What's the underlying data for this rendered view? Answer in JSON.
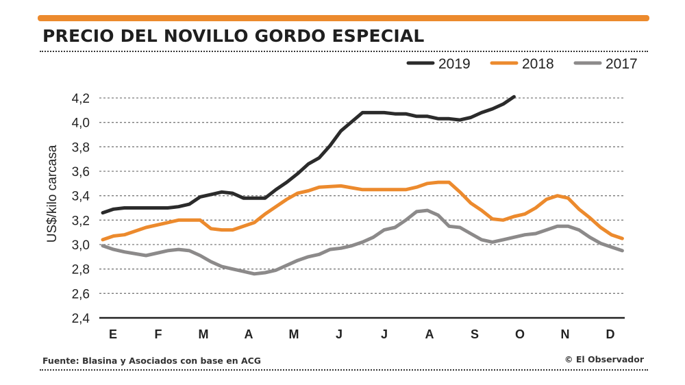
{
  "header": {
    "title": "PRECIO DEL NOVILLO GORDO ESPECIAL"
  },
  "footer": {
    "source": "Fuente: Blasina y Asociados con base en ACG",
    "credit": "© El Observador"
  },
  "colors": {
    "accent": "#ec8a2d",
    "s2019": "#2b2b2b",
    "s2018": "#ec8a2d",
    "s2017": "#8c8a8a",
    "grid": "#777777"
  },
  "chart_data": {
    "type": "line",
    "title": "PRECIO DEL NOVILLO GORDO ESPECIAL",
    "xlabel": "",
    "ylabel": "US$/kilo carcasa",
    "ylim": [
      2.4,
      4.2
    ],
    "yticks": [
      2.4,
      2.6,
      2.8,
      3.0,
      3.2,
      3.4,
      3.6,
      3.8,
      4.0,
      4.2
    ],
    "ytick_labels": [
      "2,4",
      "2,6",
      "2,8",
      "3,0",
      "3,2",
      "3,4",
      "3,6",
      "3,8",
      "4,0",
      "4,2"
    ],
    "categories": [
      "E",
      "F",
      "M",
      "A",
      "M",
      "J",
      "J",
      "A",
      "S",
      "O",
      "N",
      "D"
    ],
    "xlim": [
      0,
      12
    ],
    "grid": true,
    "legend": "top-right",
    "series": [
      {
        "name": "2019",
        "color": "#2b2b2b",
        "x": [
          0,
          0.25,
          0.5,
          1,
          1.5,
          1.75,
          2,
          2.25,
          2.5,
          2.75,
          3,
          3.25,
          3.5,
          3.75,
          4,
          4.25,
          4.5,
          4.75,
          5,
          5.25,
          5.5,
          6,
          6.25,
          6.5,
          6.75,
          7,
          7.25,
          7.5,
          7.75,
          8,
          8.25,
          8.5,
          8.75,
          9,
          9.25,
          9.5
        ],
        "y": [
          3.26,
          3.29,
          3.3,
          3.3,
          3.3,
          3.31,
          3.33,
          3.39,
          3.41,
          3.43,
          3.42,
          3.38,
          3.38,
          3.38,
          3.45,
          3.51,
          3.58,
          3.66,
          3.71,
          3.81,
          3.93,
          4.08,
          4.08,
          4.08,
          4.07,
          4.07,
          4.05,
          4.05,
          4.03,
          4.03,
          4.02,
          4.04,
          4.08,
          4.11,
          4.15,
          4.21
        ]
      },
      {
        "name": "2018",
        "color": "#ec8a2d",
        "x": [
          0,
          0.25,
          0.5,
          1,
          1.5,
          1.75,
          2,
          2.25,
          2.5,
          2.75,
          3,
          3.25,
          3.5,
          3.75,
          4,
          4.25,
          4.5,
          4.75,
          5,
          5.5,
          6,
          6.25,
          6.5,
          6.75,
          7,
          7.25,
          7.5,
          7.75,
          8,
          8.25,
          8.5,
          8.75,
          9,
          9.25,
          9.5,
          9.75,
          10,
          10.25,
          10.5,
          10.75,
          11,
          11.25,
          11.5,
          11.75,
          12
        ],
        "y": [
          3.04,
          3.07,
          3.08,
          3.14,
          3.18,
          3.2,
          3.2,
          3.2,
          3.13,
          3.12,
          3.12,
          3.15,
          3.18,
          3.25,
          3.31,
          3.37,
          3.42,
          3.44,
          3.47,
          3.48,
          3.45,
          3.45,
          3.45,
          3.45,
          3.45,
          3.47,
          3.5,
          3.51,
          3.51,
          3.43,
          3.34,
          3.28,
          3.21,
          3.2,
          3.23,
          3.25,
          3.3,
          3.37,
          3.4,
          3.38,
          3.29,
          3.22,
          3.14,
          3.08,
          3.05
        ]
      },
      {
        "name": "2017",
        "color": "#8c8a8a",
        "x": [
          0,
          0.25,
          0.5,
          1,
          1.25,
          1.5,
          1.75,
          2,
          2.25,
          2.5,
          2.75,
          3,
          3.25,
          3.5,
          3.75,
          4,
          4.25,
          4.5,
          4.75,
          5,
          5.25,
          5.5,
          5.75,
          6,
          6.25,
          6.5,
          6.75,
          7,
          7.25,
          7.5,
          7.75,
          8,
          8.25,
          8.5,
          8.75,
          9,
          9.25,
          9.5,
          9.75,
          10,
          10.25,
          10.5,
          10.75,
          11,
          11.25,
          11.5,
          11.75,
          12
        ],
        "y": [
          2.99,
          2.96,
          2.94,
          2.91,
          2.93,
          2.95,
          2.96,
          2.95,
          2.91,
          2.86,
          2.82,
          2.8,
          2.78,
          2.76,
          2.77,
          2.79,
          2.83,
          2.87,
          2.9,
          2.92,
          2.96,
          2.97,
          2.99,
          3.02,
          3.06,
          3.12,
          3.14,
          3.2,
          3.27,
          3.28,
          3.24,
          3.15,
          3.14,
          3.09,
          3.04,
          3.02,
          3.04,
          3.06,
          3.08,
          3.09,
          3.12,
          3.15,
          3.15,
          3.12,
          3.06,
          3.01,
          2.98,
          2.95
        ]
      }
    ]
  }
}
